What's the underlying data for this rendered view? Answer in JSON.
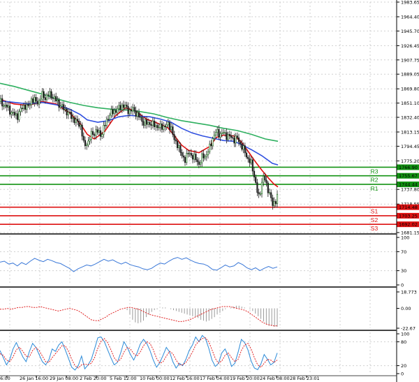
{
  "colors": {
    "up": "#2b8a2b",
    "down": "#cc2a2a",
    "ma_fast": "#e01010",
    "ma_mid": "#3050e0",
    "ma_slow": "#2fb060",
    "resistance": "#129212",
    "support": "#dd1111",
    "rsi": "#3a78d8",
    "macd_hist": "#9a9a9a",
    "macd_signal": "#e02020",
    "stoch_main": "#2a8ad8",
    "stoch_signal": "#e02020",
    "grid": "#cfcfcf",
    "separator": "#444444"
  },
  "chart_data": [
    {
      "type": "candlestick",
      "name": "price",
      "price_axis_ticks": [
        "1983.65",
        "1964.40",
        "1945.70",
        "1926.45",
        "1907.75",
        "1889.05",
        "1869.80",
        "1851.10",
        "1832.40",
        "1813.15",
        "1794.45",
        "1775.20",
        "1737.80",
        "1718.55",
        "1681.15"
      ],
      "ylim": [
        1681.15,
        1983.65
      ],
      "x_axis_labels": [
        "16:00",
        "26 Jan 16:00",
        "29 Jan 08:00",
        "2 Feb 20:00",
        "5 Feb 12:00",
        "10 Feb 00:00",
        "12 Feb 16:00",
        "17 Feb 04:00",
        "19 Feb 20:00",
        "24 Feb 08:00",
        "28 Feb 23:01"
      ],
      "close_path": [
        [
          0,
          1853
        ],
        [
          5,
          1849
        ],
        [
          10,
          1846
        ],
        [
          15,
          1840
        ],
        [
          20,
          1836
        ],
        [
          25,
          1834
        ],
        [
          30,
          1843
        ],
        [
          35,
          1848
        ],
        [
          40,
          1845
        ],
        [
          45,
          1856
        ],
        [
          50,
          1854
        ],
        [
          55,
          1852
        ],
        [
          60,
          1862
        ],
        [
          65,
          1858
        ],
        [
          70,
          1863
        ],
        [
          75,
          1860
        ],
        [
          80,
          1855
        ],
        [
          85,
          1849
        ],
        [
          90,
          1845
        ],
        [
          95,
          1840
        ],
        [
          100,
          1836
        ],
        [
          105,
          1830
        ],
        [
          110,
          1826
        ],
        [
          115,
          1823
        ],
        [
          118,
          1808
        ],
        [
          121,
          1792
        ],
        [
          124,
          1800
        ],
        [
          127,
          1799
        ],
        [
          130,
          1810
        ],
        [
          135,
          1812
        ],
        [
          140,
          1814
        ],
        [
          145,
          1809
        ],
        [
          150,
          1822
        ],
        [
          155,
          1833
        ],
        [
          160,
          1839
        ],
        [
          165,
          1841
        ],
        [
          170,
          1844
        ],
        [
          175,
          1848
        ],
        [
          180,
          1846
        ],
        [
          185,
          1840
        ],
        [
          190,
          1843
        ],
        [
          195,
          1838
        ],
        [
          200,
          1832
        ],
        [
          205,
          1826
        ],
        [
          210,
          1824
        ],
        [
          215,
          1825
        ],
        [
          220,
          1822
        ],
        [
          225,
          1821
        ],
        [
          230,
          1819
        ],
        [
          235,
          1821
        ],
        [
          240,
          1822
        ],
        [
          245,
          1820
        ],
        [
          250,
          1800
        ],
        [
          255,
          1797
        ],
        [
          260,
          1781
        ],
        [
          265,
          1778
        ],
        [
          270,
          1786
        ],
        [
          275,
          1782
        ],
        [
          280,
          1778
        ],
        [
          285,
          1771
        ],
        [
          290,
          1781
        ],
        [
          295,
          1782
        ],
        [
          300,
          1792
        ],
        [
          305,
          1806
        ],
        [
          310,
          1814
        ],
        [
          315,
          1810
        ],
        [
          320,
          1812
        ],
        [
          325,
          1808
        ],
        [
          330,
          1807
        ],
        [
          335,
          1803
        ],
        [
          340,
          1805
        ],
        [
          345,
          1796
        ],
        [
          350,
          1788
        ],
        [
          355,
          1778
        ],
        [
          360,
          1771
        ],
        [
          365,
          1752
        ],
        [
          368,
          1736
        ],
        [
          371,
          1726
        ],
        [
          375,
          1748
        ],
        [
          378,
          1755
        ],
        [
          382,
          1742
        ],
        [
          386,
          1733
        ],
        [
          390,
          1717
        ],
        [
          394,
          1722
        ],
        [
          397,
          1729
        ]
      ],
      "moving_averages": [
        {
          "color_key": "ma_fast",
          "points": [
            [
              0,
              1856
            ],
            [
              20,
              1850
            ],
            [
              40,
              1848
            ],
            [
              60,
              1853
            ],
            [
              80,
              1850
            ],
            [
              100,
              1838
            ],
            [
              115,
              1824
            ],
            [
              125,
              1810
            ],
            [
              135,
              1804
            ],
            [
              150,
              1814
            ],
            [
              165,
              1834
            ],
            [
              180,
              1845
            ],
            [
              195,
              1840
            ],
            [
              210,
              1830
            ],
            [
              225,
              1825
            ],
            [
              240,
              1819
            ],
            [
              250,
              1808
            ],
            [
              260,
              1796
            ],
            [
              270,
              1789
            ],
            [
              285,
              1786
            ],
            [
              300,
              1794
            ],
            [
              310,
              1806
            ],
            [
              320,
              1809
            ],
            [
              335,
              1808
            ],
            [
              345,
              1801
            ],
            [
              355,
              1788
            ],
            [
              365,
              1775
            ],
            [
              375,
              1763
            ],
            [
              385,
              1752
            ],
            [
              392,
              1745
            ],
            [
              398,
              1741
            ]
          ]
        },
        {
          "color_key": "ma_mid",
          "points": [
            [
              0,
              1854
            ],
            [
              20,
              1852
            ],
            [
              40,
              1850
            ],
            [
              60,
              1852
            ],
            [
              80,
              1849
            ],
            [
              100,
              1843
            ],
            [
              115,
              1836
            ],
            [
              125,
              1829
            ],
            [
              140,
              1826
            ],
            [
              155,
              1828
            ],
            [
              170,
              1833
            ],
            [
              185,
              1835
            ],
            [
              200,
              1834
            ],
            [
              215,
              1833
            ],
            [
              230,
              1830
            ],
            [
              245,
              1826
            ],
            [
              260,
              1818
            ],
            [
              275,
              1812
            ],
            [
              290,
              1808
            ],
            [
              305,
              1805
            ],
            [
              320,
              1802
            ],
            [
              335,
              1801
            ],
            [
              345,
              1797
            ],
            [
              360,
              1790
            ],
            [
              375,
              1782
            ],
            [
              390,
              1772
            ],
            [
              398,
              1770
            ]
          ]
        },
        {
          "color_key": "ma_slow",
          "points": [
            [
              0,
              1877
            ],
            [
              20,
              1873
            ],
            [
              40,
              1868
            ],
            [
              60,
              1863
            ],
            [
              80,
              1857
            ],
            [
              100,
              1852
            ],
            [
              120,
              1848
            ],
            [
              140,
              1845
            ],
            [
              160,
              1843
            ],
            [
              180,
              1842
            ],
            [
              200,
              1840
            ],
            [
              220,
              1837
            ],
            [
              240,
              1832
            ],
            [
              260,
              1828
            ],
            [
              280,
              1825
            ],
            [
              300,
              1822
            ],
            [
              320,
              1818
            ],
            [
              340,
              1815
            ],
            [
              360,
              1810
            ],
            [
              380,
              1804
            ],
            [
              398,
              1801
            ]
          ]
        }
      ],
      "levels": [
        {
          "name": "R3",
          "price": 1766.9,
          "label": "1766.90",
          "kind": "resistance"
        },
        {
          "name": "R2",
          "price": 1755.67,
          "label": "1755.67",
          "kind": "resistance"
        },
        {
          "name": "R1",
          "price": 1744.44,
          "label": "1744.44",
          "kind": "resistance"
        },
        {
          "name": "S1",
          "price": 1714.48,
          "label": "1714.48",
          "kind": "support"
        },
        {
          "name": "S2",
          "price": 1703.25,
          "label": "1703.25",
          "kind": "support"
        },
        {
          "name": "S3",
          "price": 1692.02,
          "label": "1692.02",
          "kind": "support"
        }
      ]
    },
    {
      "type": "line",
      "name": "rsi",
      "ticks": [
        "100",
        "70",
        "30",
        "0"
      ],
      "ylim": [
        0,
        100
      ],
      "values": [
        48,
        50,
        44,
        46,
        40,
        47,
        43,
        50,
        56,
        52,
        49,
        54,
        51,
        47,
        45,
        40,
        35,
        28,
        34,
        38,
        42,
        40,
        44,
        49,
        54,
        50,
        53,
        48,
        44,
        48,
        43,
        40,
        38,
        34,
        32,
        35,
        41,
        46,
        44,
        50,
        55,
        58,
        54,
        57,
        52,
        48,
        45,
        44,
        40,
        33,
        31,
        36,
        42,
        38,
        40,
        47,
        43,
        36,
        32,
        36,
        30,
        35,
        39,
        35,
        38
      ]
    },
    {
      "type": "bar+line",
      "name": "macd",
      "ticks": [
        "18.773",
        "0.00",
        "-22.67"
      ],
      "ylim": [
        -22.67,
        18.773
      ],
      "histogram": [
        0,
        0,
        0,
        0,
        0,
        0,
        0,
        0,
        0,
        0,
        0,
        0,
        0,
        0,
        0,
        0,
        0,
        0,
        0,
        0,
        0,
        -2,
        -7,
        -13,
        -16,
        -17,
        -16,
        -14,
        -10,
        -7,
        -4,
        -2,
        -1,
        0,
        1,
        1,
        0,
        -1,
        -2,
        -3,
        -4,
        -5,
        -6,
        -7,
        -8,
        -9,
        -10,
        -11,
        -13,
        -14,
        -15,
        -14,
        -12,
        -10,
        -7,
        -5,
        -3,
        -1,
        0,
        1,
        2,
        3,
        3,
        2,
        1,
        0,
        -1,
        -3,
        -6,
        -9,
        -12,
        -15,
        -18,
        -20,
        -20,
        -21,
        -21
      ],
      "signal": [
        -1,
        -1,
        0,
        -1,
        0,
        1,
        1,
        2,
        2,
        1,
        1,
        2,
        1,
        0,
        -1,
        -2,
        -3,
        -2,
        -1,
        0,
        -1,
        -2,
        -4,
        -7,
        -10,
        -13,
        -14,
        -14,
        -12,
        -10,
        -7,
        -5,
        -3,
        -1,
        0,
        1,
        1,
        0,
        -1,
        -3,
        -5,
        -7,
        -8,
        -9,
        -10,
        -11,
        -12,
        -13,
        -14,
        -15,
        -15,
        -14,
        -13,
        -11,
        -9,
        -7,
        -5,
        -3,
        -1,
        0,
        1,
        2,
        2,
        2,
        1,
        0,
        -1,
        -2,
        -4,
        -7,
        -10,
        -13,
        -16,
        -18,
        -19,
        -20,
        -20
      ]
    },
    {
      "type": "line",
      "name": "stochastic",
      "ticks": [
        "100",
        "80",
        "20",
        "0"
      ],
      "ylim": [
        0,
        100
      ],
      "main": [
        58,
        40,
        22,
        36,
        62,
        78,
        60,
        42,
        30,
        55,
        76,
        66,
        48,
        30,
        22,
        35,
        62,
        56,
        72,
        80,
        60,
        38,
        16,
        9,
        20,
        44,
        12,
        22,
        36,
        62,
        90,
        92,
        80,
        60,
        40,
        22,
        28,
        52,
        80,
        66,
        48,
        34,
        52,
        74,
        86,
        76,
        58,
        34,
        16,
        28,
        46,
        66,
        54,
        30,
        14,
        26,
        20,
        36,
        58,
        72,
        92,
        80,
        96,
        88,
        64,
        34,
        18,
        26,
        52,
        62,
        44,
        18,
        26,
        54,
        86,
        78,
        60,
        32,
        14,
        10,
        24,
        48,
        36,
        22,
        28,
        52
      ],
      "signal": [
        50,
        46,
        34,
        30,
        42,
        60,
        66,
        56,
        44,
        42,
        58,
        66,
        58,
        44,
        30,
        28,
        40,
        50,
        60,
        70,
        70,
        56,
        36,
        20,
        14,
        22,
        24,
        22,
        26,
        40,
        64,
        82,
        88,
        78,
        60,
        40,
        30,
        36,
        54,
        66,
        62,
        50,
        44,
        54,
        70,
        80,
        76,
        60,
        38,
        26,
        30,
        44,
        56,
        50,
        34,
        22,
        22,
        28,
        40,
        54,
        72,
        82,
        88,
        90,
        80,
        60,
        38,
        26,
        32,
        46,
        52,
        40,
        30,
        36,
        58,
        72,
        76,
        62,
        40,
        22,
        16,
        26,
        36,
        34,
        28,
        34
      ]
    }
  ]
}
